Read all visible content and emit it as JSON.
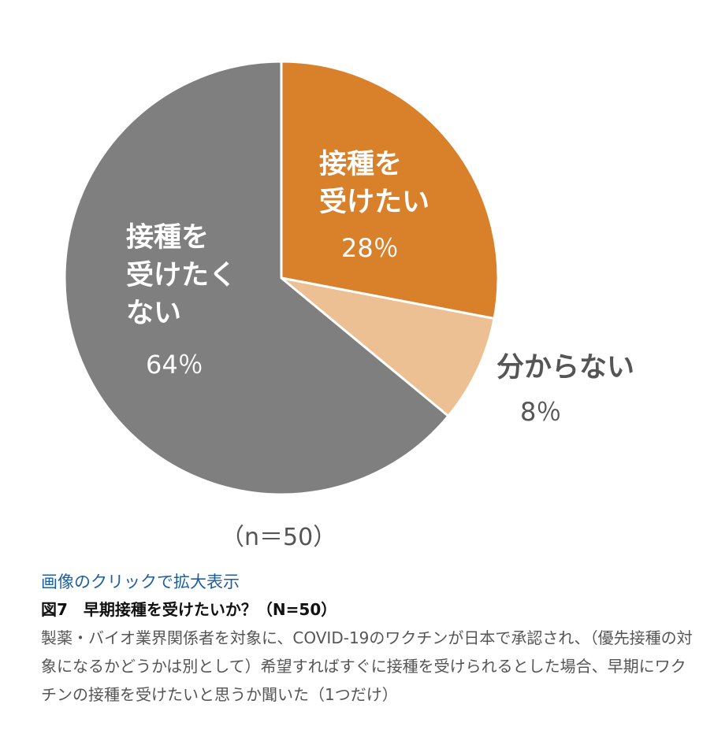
{
  "chart_data": {
    "type": "pie",
    "slices": [
      {
        "label_lines": [
          "接種を",
          "受けたい"
        ],
        "value": 28,
        "value_label": "28％",
        "color": "#d9802b"
      },
      {
        "label_lines": [
          "分からない"
        ],
        "value": 8,
        "value_label": "8％",
        "color": "#ecc092"
      },
      {
        "label_lines": [
          "接種を",
          "受けたく",
          "ない"
        ],
        "value": 64,
        "value_label": "64％",
        "color": "#7f7f7f"
      }
    ],
    "sample_note": "（n＝50）"
  },
  "caption": {
    "link_text": "画像のクリックで拡大表示",
    "title": "図7　早期接種を受けたいか？（N=50）",
    "body": "製薬・バイオ業界関係者を対象に、COVID-19のワクチンが日本で承認され、（優先接種の対象になるかどうかは別として）希望すればすぐに接種を受けられるとした場合、早期にワクチンの接種を受けたいと思うか聞いた（1つだけ）"
  }
}
